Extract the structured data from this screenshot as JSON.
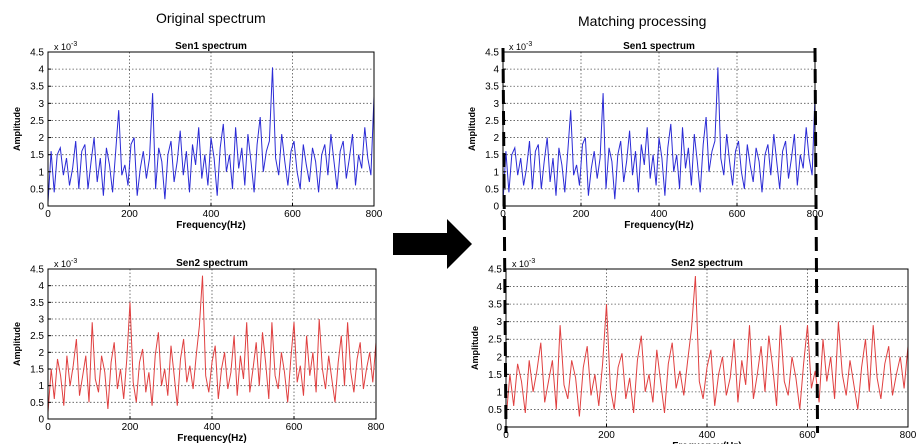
{
  "headings": {
    "left": "Original spectrum",
    "right": "Matching processing"
  },
  "chart_data": [
    {
      "type": "line",
      "title": "Sen1 spectrum",
      "xlabel": "Frequency(Hz)",
      "ylabel": "Amplitude",
      "y_exponent": "x 10",
      "y_exponent_power": "-3",
      "xlim": [
        0,
        800
      ],
      "ylim": [
        0,
        4.5
      ],
      "xticks": [
        "0",
        "200",
        "400",
        "600",
        "800"
      ],
      "yticks": [
        "0",
        "0.5",
        "1",
        "1.5",
        "2",
        "2.5",
        "3",
        "3.5",
        "4",
        "4.5"
      ],
      "grid": true,
      "color": "#2b2bd6",
      "peaks": [
        [
          0,
          0.8
        ],
        [
          15,
          1.6
        ],
        [
          40,
          1.7
        ],
        [
          70,
          1.9
        ],
        [
          95,
          1.8
        ],
        [
          130,
          2.0
        ],
        [
          165,
          2.8
        ],
        [
          205,
          2.0
        ],
        [
          230,
          1.8
        ],
        [
          262,
          3.3
        ],
        [
          300,
          2.2
        ],
        [
          340,
          2.3
        ],
        [
          370,
          2.0
        ],
        [
          395,
          2.4
        ],
        [
          425,
          2.3
        ],
        [
          460,
          2.1
        ],
        [
          490,
          2.6
        ],
        [
          528,
          4.05
        ],
        [
          560,
          2.1
        ],
        [
          600,
          1.9
        ],
        [
          640,
          1.8
        ],
        [
          680,
          2.1
        ],
        [
          720,
          1.9
        ],
        [
          760,
          2.1
        ],
        [
          790,
          2.3
        ],
        [
          800,
          3.2
        ]
      ],
      "series": [
        {
          "values": [
            0.1,
            1.6,
            0.4,
            1.5,
            1.7,
            0.9,
            1.4,
            0.6,
            1.1,
            1.9,
            0.5,
            1.6,
            1.8,
            0.5,
            1.3,
            2.0,
            0.7,
            1.4,
            0.3,
            1.7,
            1.2,
            0.4,
            1.6,
            2.8,
            0.9,
            1.2,
            0.6,
            1.8,
            2.0,
            0.3,
            1.1,
            1.6,
            0.8,
            1.4,
            3.3,
            0.5,
            1.7,
            1.3,
            0.2,
            1.5,
            1.9,
            0.7,
            1.3,
            2.2,
            0.9,
            1.6,
            0.4,
            1.8,
            1.2,
            2.3,
            0.8,
            1.5,
            0.6,
            2.0,
            1.4,
            0.3,
            1.7,
            2.4,
            1.0,
            1.5,
            0.5,
            2.3,
            1.1,
            1.7,
            0.6,
            2.1,
            1.3,
            0.4,
            1.8,
            2.6,
            1.0,
            1.6,
            1.9,
            4.05,
            1.4,
            0.9,
            2.1,
            1.3,
            0.6,
            1.6,
            1.9,
            1.0,
            0.5,
            1.8,
            1.2,
            0.7,
            1.7,
            1.3,
            0.4,
            1.5,
            1.8,
            0.9,
            2.1,
            1.3,
            0.5,
            1.6,
            1.9,
            0.8,
            1.4,
            2.1,
            0.6,
            1.5,
            1.1,
            2.3,
            1.4,
            0.9,
            3.2
          ]
        }
      ]
    },
    {
      "type": "line",
      "title": "Sen2 spectrum",
      "xlabel": "Frequency(Hz)",
      "ylabel": "Amplitude",
      "y_exponent": "x 10",
      "y_exponent_power": "-3",
      "xlim": [
        0,
        800
      ],
      "ylim": [
        0,
        4.5
      ],
      "xticks": [
        "0",
        "200",
        "400",
        "600",
        "800"
      ],
      "yticks": [
        "0",
        "0.5",
        "1",
        "1.5",
        "2",
        "2.5",
        "3",
        "3.5",
        "4",
        "4.5"
      ],
      "grid": true,
      "color": "#e04040",
      "series": [
        {
          "values": [
            0.2,
            1.5,
            0.6,
            1.8,
            1.3,
            0.4,
            1.9,
            1.0,
            1.6,
            2.4,
            0.7,
            1.3,
            1.9,
            0.5,
            2.9,
            1.2,
            0.8,
            1.9,
            1.4,
            0.3,
            1.7,
            2.3,
            0.9,
            1.5,
            0.6,
            1.8,
            3.5,
            1.1,
            0.5,
            1.7,
            2.1,
            0.8,
            1.4,
            0.4,
            1.9,
            2.6,
            1.0,
            1.5,
            0.7,
            2.2,
            1.3,
            0.4,
            1.8,
            2.4,
            1.1,
            1.6,
            0.9,
            1.9,
            2.8,
            4.3,
            1.3,
            0.8,
            1.7,
            2.2,
            0.6,
            1.5,
            2.0,
            0.9,
            1.4,
            2.5,
            0.7,
            1.9,
            1.2,
            2.9,
            0.8,
            1.5,
            2.3,
            1.0,
            2.6,
            1.7,
            0.6,
            2.9,
            1.3,
            0.9,
            2.0,
            1.4,
            0.5,
            1.8,
            2.9,
            1.1,
            1.6,
            0.7,
            2.5,
            1.3,
            2.0,
            0.8,
            3.0,
            1.5,
            0.9,
            1.9,
            1.2,
            0.5,
            1.7,
            2.5,
            1.0,
            2.9,
            1.4,
            0.8,
            1.8,
            2.3,
            0.9,
            1.5,
            2.0,
            1.1,
            2.3
          ]
        }
      ]
    }
  ],
  "matching": {
    "sen1_window_hz": [
      0,
      800
    ],
    "sen2_window_hz": [
      0,
      620
    ]
  }
}
